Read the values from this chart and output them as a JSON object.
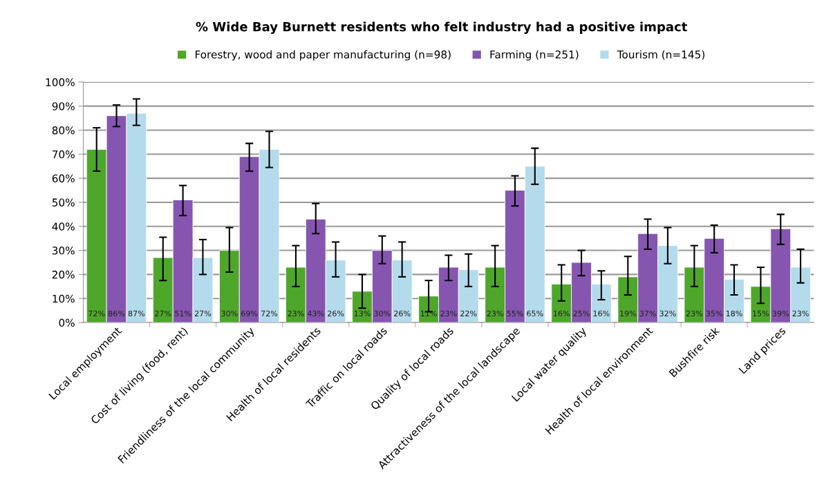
{
  "chart_data": {
    "type": "bar",
    "title": "% Wide Bay Burnett residents who felt industry had a positive impact",
    "categories": [
      "Local employment",
      "Cost of living (food, rent)",
      "Friendliness of the local community",
      "Health of local residents",
      "Traffic on local roads",
      "Quality of local roads",
      "Attractiveness of the local landscape",
      "Local water quality",
      "Health of local environment",
      "Bushfire risk",
      "Land prices"
    ],
    "series": [
      {
        "name": "Forestry, wood and paper manufacturing (n=98)",
        "color": "#4ea72a",
        "values": [
          72,
          27,
          30,
          23,
          13,
          11,
          23,
          16,
          19,
          23,
          15
        ],
        "value_labels": [
          "72%",
          "27%",
          "30%",
          "23%",
          "13%",
          "11%",
          "23%",
          "16%",
          "19%",
          "23%",
          "15%"
        ],
        "errors": [
          [
            63,
            81
          ],
          [
            17.5,
            35.5
          ],
          [
            21,
            39.5
          ],
          [
            15,
            32
          ],
          [
            6,
            20
          ],
          [
            4.5,
            17.5
          ],
          [
            15,
            32
          ],
          [
            9,
            24
          ],
          [
            11.5,
            27.5
          ],
          [
            15,
            32
          ],
          [
            8,
            23
          ]
        ]
      },
      {
        "name": "Farming (n=251)",
        "color": "#8655b0",
        "values": [
          86,
          51,
          69,
          43,
          30,
          23,
          55,
          25,
          37,
          35,
          39
        ],
        "value_labels": [
          "86%",
          "51%",
          "69%",
          "43%",
          "30%",
          "23%",
          "55%",
          "25%",
          "37%",
          "35%",
          "39%"
        ],
        "errors": [
          [
            81.5,
            90.5
          ],
          [
            44.5,
            57
          ],
          [
            63,
            74.5
          ],
          [
            37,
            49.5
          ],
          [
            24.5,
            36
          ],
          [
            17.5,
            28
          ],
          [
            48.5,
            61
          ],
          [
            19.5,
            30
          ],
          [
            30.5,
            43
          ],
          [
            29,
            40.5
          ],
          [
            32.5,
            45
          ]
        ]
      },
      {
        "name": "Tourism (n=145)",
        "color": "#b4dbec",
        "values": [
          87,
          27,
          72,
          26,
          26,
          22,
          65,
          16,
          32,
          18,
          23
        ],
        "value_labels": [
          "87%",
          "27%",
          "72%",
          "26%",
          "26%",
          "22%",
          "65%",
          "16%",
          "32%",
          "18%",
          "23%"
        ],
        "errors": [
          [
            82,
            93
          ],
          [
            20,
            34.5
          ],
          [
            64.5,
            79.5
          ],
          [
            19,
            33.5
          ],
          [
            19,
            33.5
          ],
          [
            15,
            28.5
          ],
          [
            57.5,
            72.5
          ],
          [
            9.5,
            21.5
          ],
          [
            24.5,
            39.5
          ],
          [
            11.5,
            24
          ],
          [
            16.5,
            30.5
          ]
        ]
      }
    ],
    "ylim": [
      0,
      100
    ],
    "yticks": [
      {
        "value": 0,
        "label": "0%"
      },
      {
        "value": 10,
        "label": "10%"
      },
      {
        "value": 20,
        "label": "20%"
      },
      {
        "value": 30,
        "label": "30%"
      },
      {
        "value": 40,
        "label": "40%"
      },
      {
        "value": 50,
        "label": "50%"
      },
      {
        "value": 60,
        "label": "60%"
      },
      {
        "value": 70,
        "label": "70%"
      },
      {
        "value": 80,
        "label": "80%"
      },
      {
        "value": 90,
        "label": "90%"
      },
      {
        "value": 100,
        "label": "100%"
      }
    ],
    "grid": "y",
    "legend": "top"
  }
}
